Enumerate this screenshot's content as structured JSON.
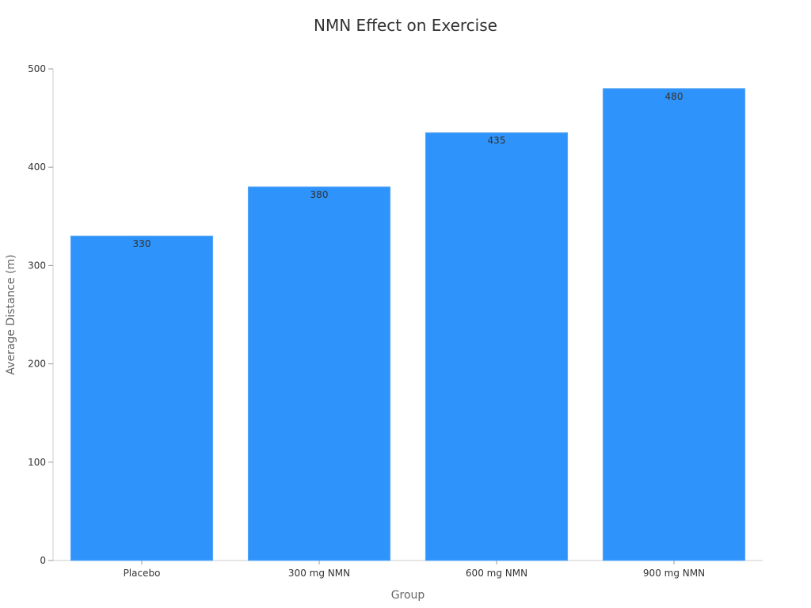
{
  "chart_data": {
    "type": "bar",
    "title": "NMN Effect on Exercise",
    "xlabel": "Group",
    "ylabel": "Average Distance (m)",
    "categories": [
      "Placebo",
      "300 mg NMN",
      "600 mg NMN",
      "900 mg NMN"
    ],
    "values": [
      330,
      380,
      435,
      480
    ],
    "data_labels": [
      "330",
      "380",
      "435",
      "480"
    ],
    "ylim": [
      0,
      500
    ],
    "yticks": [
      0,
      100,
      200,
      300,
      400,
      500
    ],
    "ytick_labels": [
      "0",
      "100",
      "200",
      "300",
      "400",
      "500"
    ],
    "bar_color": "#2e93fa",
    "grid": false,
    "legend": "none"
  }
}
